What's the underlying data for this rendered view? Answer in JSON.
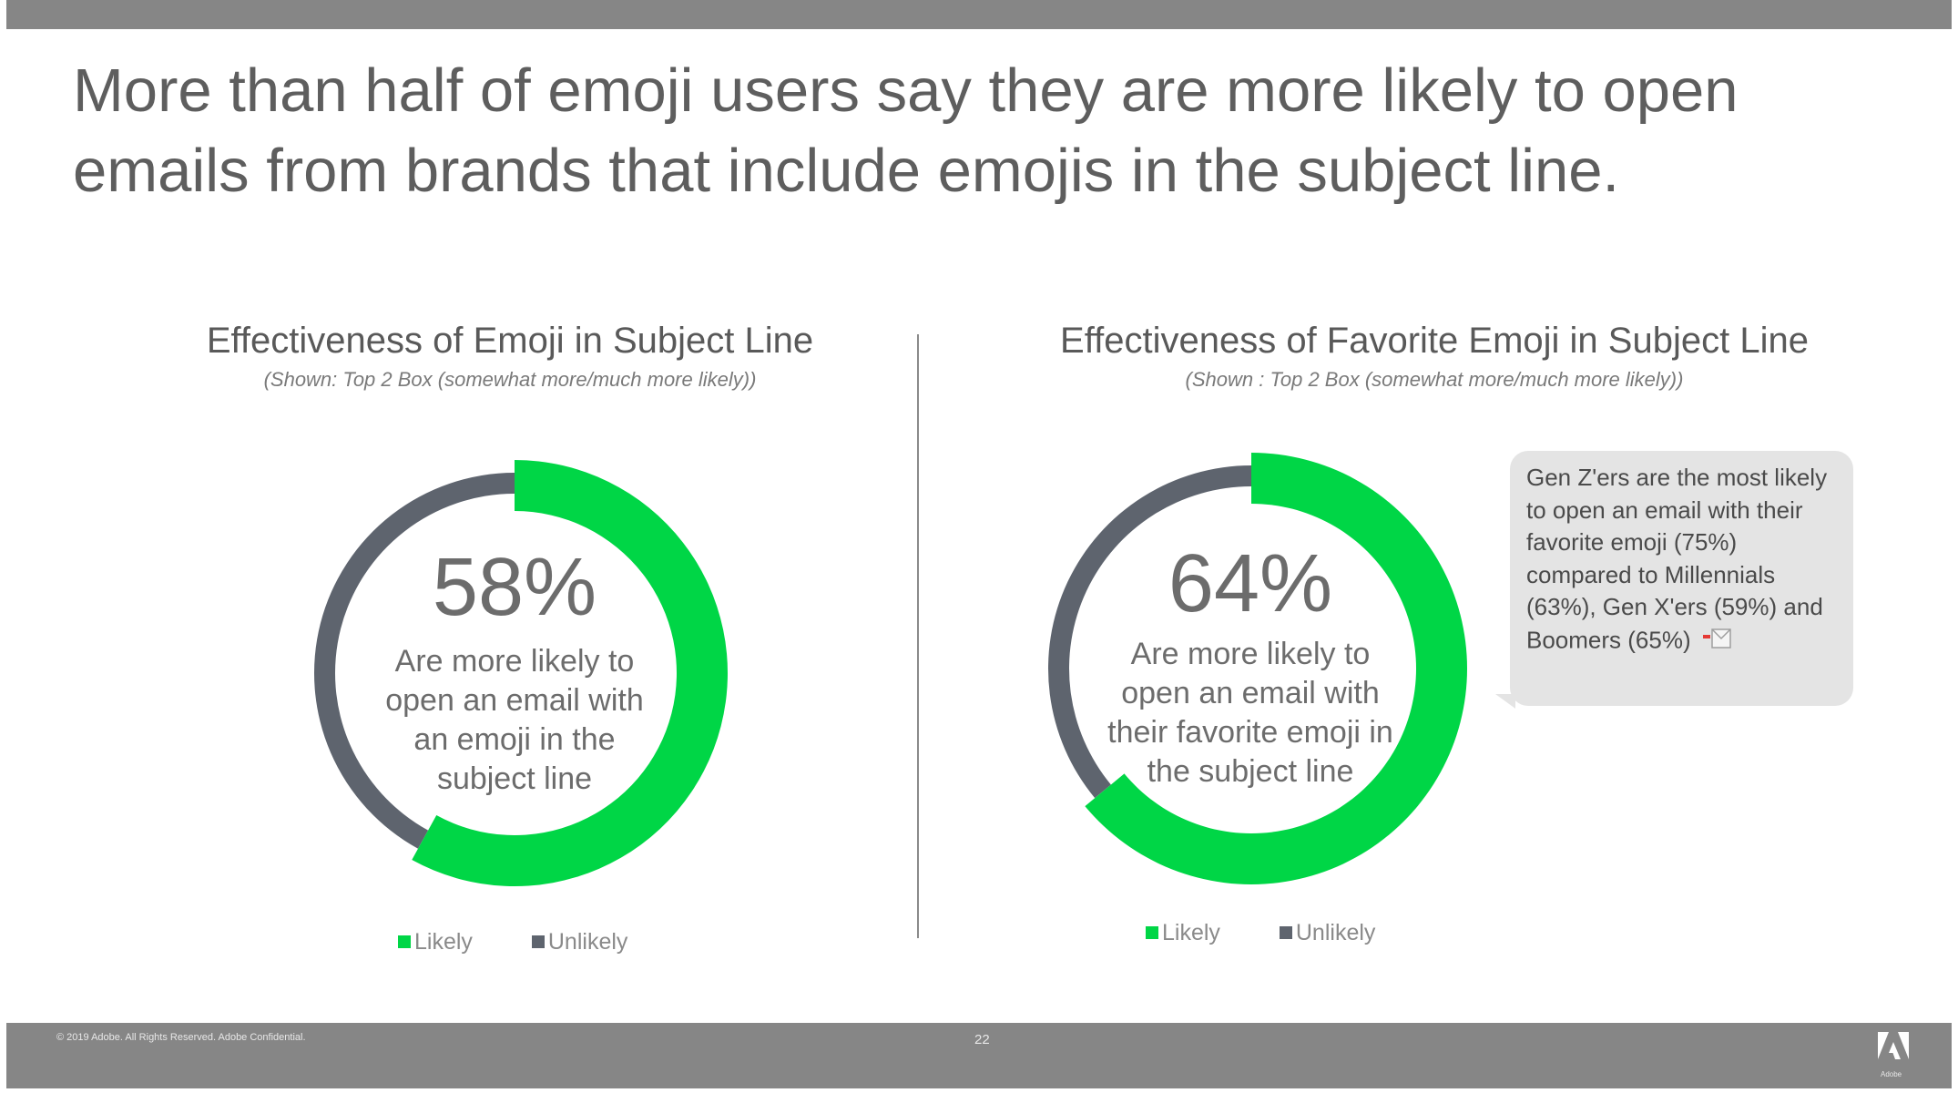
{
  "headline": "More than half of emoji users say they are more likely to open emails from brands that include emojis in the subject line.",
  "colors": {
    "likely": "#00d646",
    "unlikely": "#5e646e",
    "bar": "#868686"
  },
  "footer": {
    "copyright": "© 2019 Adobe. All Rights Reserved. Adobe Confidential.",
    "page_number": "22",
    "logo_text": "Adobe"
  },
  "callout": {
    "text": "Gen Z'ers are the most likely to open an email with their favorite emoji (75%) compared to Millennials (63%), Gen X'ers (59%) and Boomers (65%)",
    "emoji_icon": "envelope-emoji-icon"
  },
  "chart_data": [
    {
      "type": "pie",
      "title": "Effectiveness of Emoji in Subject Line",
      "subtitle": "(Shown: Top 2 Box (somewhat more/much more likely))",
      "categories": [
        "Likely",
        "Unlikely"
      ],
      "values": [
        58,
        42
      ],
      "center_value": "58%",
      "center_label": "Are more likely to open an email with an emoji in the subject line",
      "legend_position": "bottom"
    },
    {
      "type": "pie",
      "title": "Effectiveness of Favorite Emoji in Subject Line",
      "subtitle": "(Shown : Top 2 Box (somewhat more/much more likely))",
      "categories": [
        "Likely",
        "Unlikely"
      ],
      "values": [
        64,
        36
      ],
      "center_value": "64%",
      "center_label": "Are more likely to open an email with their favorite emoji in the subject line",
      "legend_position": "bottom"
    }
  ]
}
